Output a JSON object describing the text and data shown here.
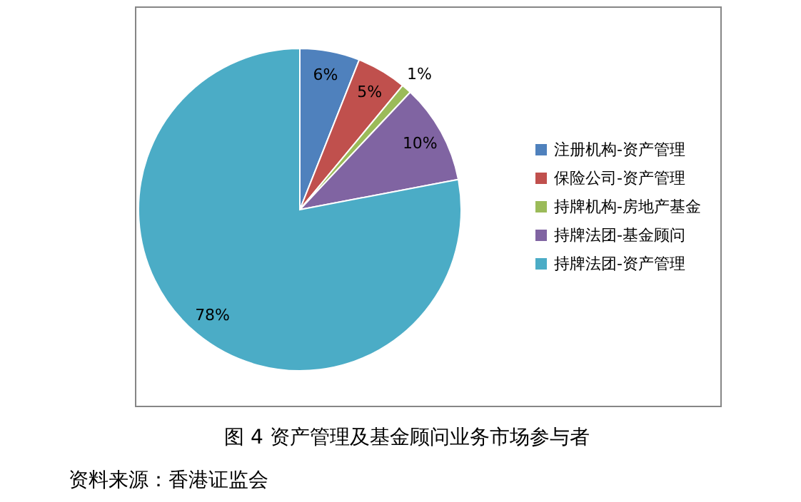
{
  "chart_data": {
    "type": "pie",
    "title": "图 4 资产管理及基金顾问业务市场参与者",
    "categories": [
      "注册机构-资产管理",
      "保险公司-资产管理",
      "持牌机构-房地产基金",
      "持牌法团-基金顾问",
      "持牌法团-资产管理"
    ],
    "values": [
      6,
      5,
      1,
      10,
      78
    ],
    "colors": [
      "#4f81bd",
      "#c0504d",
      "#9bbb59",
      "#8064a2",
      "#4bacc6"
    ],
    "value_labels": [
      "6%",
      "5%",
      "1%",
      "10%",
      "78%"
    ],
    "legend": "right",
    "annotations": [
      "资料来源：香港证监会"
    ]
  }
}
